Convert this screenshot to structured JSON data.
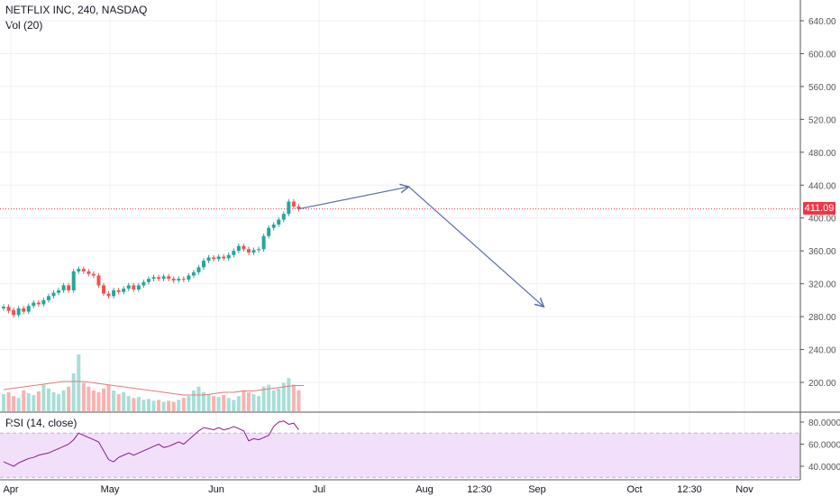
{
  "header": {
    "symbol_line": "NETFLIX INC, 240, NASDAQ",
    "volume_label": "Vol (20)",
    "rsi_label": "RSI (14, close)"
  },
  "last_price": "411.09",
  "colors": {
    "up": "#26a69a",
    "down": "#ef5350",
    "arrow": "#5b6fa8",
    "rsi_line": "#8a1b8a",
    "rsi_band": "#f2e0fb",
    "vol_ma": "#e07b7b",
    "last_price_line": "#f23645"
  },
  "chart_data": {
    "type": "candlestick",
    "price_axis": {
      "ticks": [
        640,
        600,
        560,
        520,
        480,
        440,
        400,
        360,
        320,
        280,
        240,
        200
      ],
      "tick_labels": [
        "640.00",
        "600.00",
        "560.00",
        "520.00",
        "480.00",
        "440.00",
        "400.00",
        "360.00",
        "320.00",
        "280.00",
        "240.00",
        "200.00"
      ]
    },
    "time_axis": {
      "labels": [
        "Apr",
        "May",
        "Jun",
        "Jul",
        "Aug",
        "12:30",
        "Sep",
        "Oct",
        "12:30",
        "Nov"
      ]
    },
    "close_series": [
      {
        "t": 0,
        "o": 290,
        "c": 292
      },
      {
        "t": 1,
        "o": 292,
        "c": 287
      },
      {
        "t": 2,
        "o": 288,
        "c": 282
      },
      {
        "t": 3,
        "o": 282,
        "c": 290
      },
      {
        "t": 4,
        "o": 290,
        "c": 286
      },
      {
        "t": 5,
        "o": 286,
        "c": 293
      },
      {
        "t": 6,
        "o": 293,
        "c": 297
      },
      {
        "t": 7,
        "o": 297,
        "c": 295
      },
      {
        "t": 8,
        "o": 295,
        "c": 300
      },
      {
        "t": 9,
        "o": 300,
        "c": 305
      },
      {
        "t": 10,
        "o": 305,
        "c": 309
      },
      {
        "t": 11,
        "o": 309,
        "c": 312
      },
      {
        "t": 12,
        "o": 312,
        "c": 318
      },
      {
        "t": 13,
        "o": 318,
        "c": 312
      },
      {
        "t": 14,
        "o": 312,
        "c": 335
      },
      {
        "t": 15,
        "o": 335,
        "c": 338
      },
      {
        "t": 16,
        "o": 338,
        "c": 335
      },
      {
        "t": 17,
        "o": 335,
        "c": 332
      },
      {
        "t": 18,
        "o": 332,
        "c": 330
      },
      {
        "t": 19,
        "o": 330,
        "c": 318
      },
      {
        "t": 20,
        "o": 318,
        "c": 308
      },
      {
        "t": 21,
        "o": 308,
        "c": 305
      },
      {
        "t": 22,
        "o": 305,
        "c": 312
      },
      {
        "t": 23,
        "o": 312,
        "c": 310
      },
      {
        "t": 24,
        "o": 310,
        "c": 314
      },
      {
        "t": 25,
        "o": 314,
        "c": 318
      },
      {
        "t": 26,
        "o": 318,
        "c": 313
      },
      {
        "t": 27,
        "o": 313,
        "c": 318
      },
      {
        "t": 28,
        "o": 318,
        "c": 322
      },
      {
        "t": 29,
        "o": 322,
        "c": 326
      },
      {
        "t": 30,
        "o": 326,
        "c": 328
      },
      {
        "t": 31,
        "o": 328,
        "c": 326
      },
      {
        "t": 32,
        "o": 326,
        "c": 329
      },
      {
        "t": 33,
        "o": 329,
        "c": 326
      },
      {
        "t": 34,
        "o": 326,
        "c": 324
      },
      {
        "t": 35,
        "o": 324,
        "c": 326
      },
      {
        "t": 36,
        "o": 326,
        "c": 325
      },
      {
        "t": 37,
        "o": 325,
        "c": 330
      },
      {
        "t": 38,
        "o": 330,
        "c": 334
      },
      {
        "t": 39,
        "o": 334,
        "c": 340
      },
      {
        "t": 40,
        "o": 340,
        "c": 348
      },
      {
        "t": 41,
        "o": 348,
        "c": 352
      },
      {
        "t": 42,
        "o": 352,
        "c": 350
      },
      {
        "t": 43,
        "o": 350,
        "c": 353
      },
      {
        "t": 44,
        "o": 353,
        "c": 351
      },
      {
        "t": 45,
        "o": 351,
        "c": 355
      },
      {
        "t": 46,
        "o": 355,
        "c": 360
      },
      {
        "t": 47,
        "o": 360,
        "c": 366
      },
      {
        "t": 48,
        "o": 366,
        "c": 362
      },
      {
        "t": 49,
        "o": 362,
        "c": 358
      },
      {
        "t": 50,
        "o": 358,
        "c": 361
      },
      {
        "t": 51,
        "o": 361,
        "c": 362
      },
      {
        "t": 52,
        "o": 362,
        "c": 378
      },
      {
        "t": 53,
        "o": 378,
        "c": 388
      },
      {
        "t": 54,
        "o": 388,
        "c": 392
      },
      {
        "t": 55,
        "o": 392,
        "c": 398
      },
      {
        "t": 56,
        "o": 398,
        "c": 405
      },
      {
        "t": 57,
        "o": 405,
        "c": 420
      },
      {
        "t": 58,
        "o": 420,
        "c": 414
      },
      {
        "t": 59,
        "o": 414,
        "c": 411
      }
    ],
    "projection_arrows": [
      {
        "from": {
          "t": 59,
          "price": 411
        },
        "to": {
          "t": 81,
          "price": 438
        }
      },
      {
        "from": {
          "t": 81,
          "price": 438
        },
        "to": {
          "t": 108,
          "price": 292
        }
      }
    ],
    "rsi": {
      "axis_ticks": [
        80,
        60,
        40
      ],
      "axis_labels": [
        "80.0000",
        "60.0000",
        "40.0000"
      ],
      "band": [
        30,
        70
      ],
      "values": [
        44,
        42,
        40,
        43,
        45,
        47,
        48,
        50,
        51,
        52,
        54,
        56,
        58,
        60,
        64,
        70,
        68,
        66,
        64,
        62,
        54,
        46,
        44,
        48,
        50,
        52,
        50,
        52,
        54,
        56,
        58,
        60,
        57,
        58,
        60,
        62,
        60,
        64,
        68,
        72,
        75,
        74,
        73,
        75,
        73,
        74,
        76,
        74,
        72,
        63,
        65,
        64,
        66,
        68,
        76,
        80,
        81,
        78,
        79,
        73
      ]
    },
    "volume": {
      "values": [
        18,
        20,
        16,
        14,
        22,
        19,
        17,
        21,
        28,
        24,
        20,
        18,
        22,
        26,
        40,
        60,
        30,
        26,
        22,
        20,
        24,
        28,
        22,
        18,
        20,
        16,
        14,
        15,
        12,
        13,
        11,
        12,
        10,
        11,
        10,
        12,
        14,
        16,
        22,
        26,
        20,
        18,
        16,
        15,
        17,
        14,
        12,
        16,
        22,
        20,
        18,
        16,
        26,
        28,
        22,
        24,
        30,
        35,
        28,
        22
      ],
      "ma": [
        16,
        17,
        18,
        19,
        20,
        21,
        22,
        22,
        22,
        21,
        20,
        19,
        18,
        17,
        16,
        15,
        14,
        13,
        12,
        12,
        12,
        13,
        14,
        14,
        15,
        15,
        16,
        17,
        18,
        19,
        19
      ]
    }
  }
}
